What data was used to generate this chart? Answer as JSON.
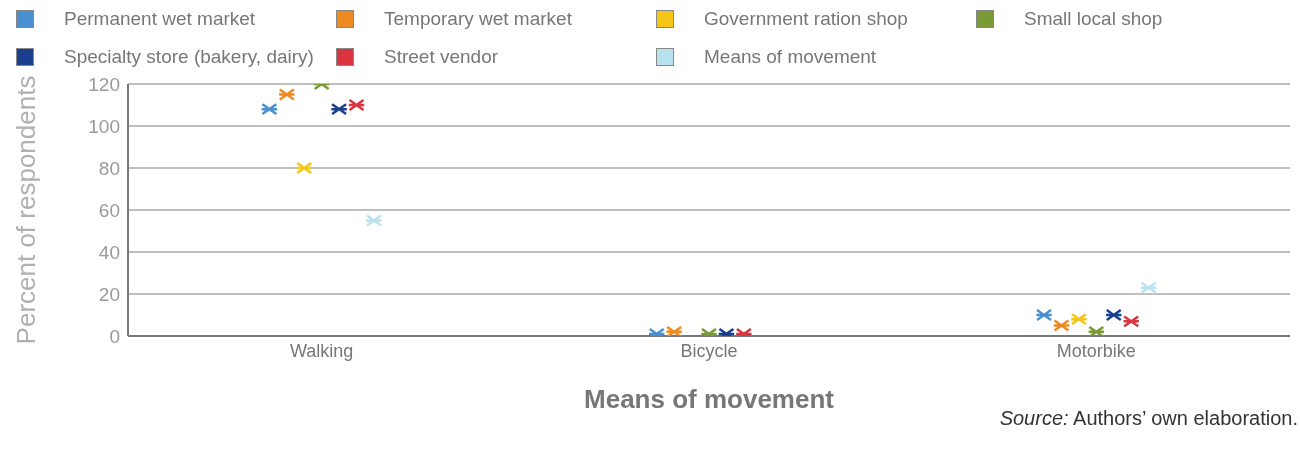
{
  "chart_data": {
    "type": "scatter",
    "xlabel": "Means of movement",
    "ylabel": "Percent of respondents",
    "categories": [
      "Walking",
      "Bicycle",
      "Motorbike"
    ],
    "series": [
      {
        "name": "Permanent wet market",
        "color": "#4a90d0",
        "values": [
          108,
          1,
          10
        ]
      },
      {
        "name": "Temporary wet market",
        "color": "#ee8a22",
        "values": [
          115,
          2,
          5
        ]
      },
      {
        "name": "Government ration shop",
        "color": "#f5c518",
        "values": [
          80,
          null,
          8
        ]
      },
      {
        "name": "Small local shop",
        "color": "#7a9a35",
        "values": [
          120,
          1,
          2
        ]
      },
      {
        "name": "Specialty store (bakery, dairy)",
        "color": "#1a3f8f",
        "values": [
          108,
          1,
          10
        ]
      },
      {
        "name": "Street vendor",
        "color": "#d9343f",
        "values": [
          110,
          1,
          7
        ]
      },
      {
        "name": "Means of movement",
        "color": "#b8e2ee",
        "values": [
          55,
          null,
          23
        ]
      }
    ],
    "ylim": [
      0,
      120
    ],
    "yticks": [
      0,
      20,
      40,
      60,
      80,
      100,
      120
    ],
    "grid": "y",
    "legend": "top",
    "marker": "cross",
    "annotations": [
      "Source: Authors’ own elaboration."
    ]
  }
}
